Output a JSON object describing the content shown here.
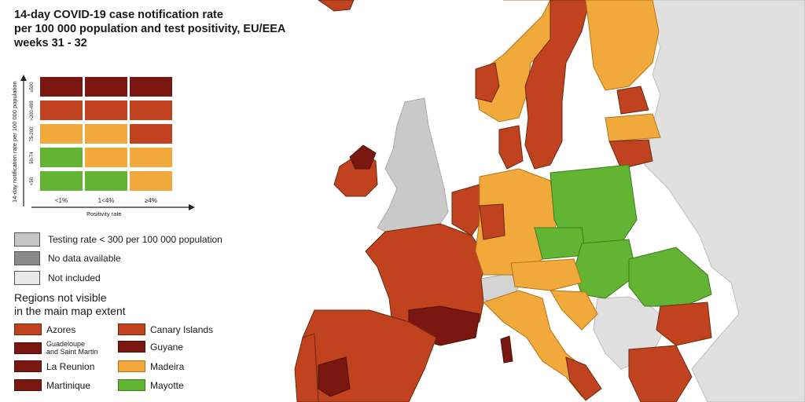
{
  "title_lines": [
    "14-day COVID-19 case notification rate",
    "per 100 000 population and test positivity, EU/EEA",
    "weeks 31 - 32"
  ],
  "matrix": {
    "y_axis_label": "14-day notification rate per 100 000 population",
    "x_axis_label": "Positivity rate",
    "row_labels": [
      "≥500",
      ">200-499",
      "75-200",
      "50-74",
      "<50"
    ],
    "col_labels": [
      "<1%",
      "1<4%",
      "≥4%"
    ],
    "cells": [
      [
        "#7b1711",
        "#7b1711",
        "#7b1711"
      ],
      [
        "#c0421f",
        "#c0421f",
        "#c0421f"
      ],
      [
        "#f0a93a",
        "#f0a93a",
        "#c0421f"
      ],
      [
        "#62b432",
        "#f0a93a",
        "#f0a93a"
      ],
      [
        "#62b432",
        "#62b432",
        "#f0a93a"
      ]
    ]
  },
  "legend": [
    {
      "label": "Testing rate < 300 per 100 000 population",
      "color": "#c6c6c6"
    },
    {
      "label": "No data available",
      "color": "#8a8a8a"
    },
    {
      "label": "Not included",
      "color": "#e9e9e9"
    }
  ],
  "regions_heading": [
    "Regions not visible",
    "in the main map extent"
  ],
  "regions": [
    {
      "name": "Azores",
      "color": "#c0421f"
    },
    {
      "name_lines": [
        "Guadeloupe",
        "and Saint Martin"
      ],
      "color": "#7b1711"
    },
    {
      "name": "La Reunion",
      "color": "#7b1711"
    },
    {
      "name": "Martinique",
      "color": "#7b1711"
    },
    {
      "name": "Canary Islands",
      "color": "#c0421f"
    },
    {
      "name": "Guyane",
      "color": "#7b1711"
    },
    {
      "name": "Madeira",
      "color": "#f0a93a"
    },
    {
      "name": "Mayotte",
      "color": "#62b432"
    }
  ],
  "colors": {
    "sea": "#ffffff",
    "not_included_land": "#e0e0e0",
    "testing_low": "#c6c6c6",
    "dark_red": "#7b1711",
    "red": "#c0421f",
    "orange": "#f0a93a",
    "green": "#62b432"
  }
}
